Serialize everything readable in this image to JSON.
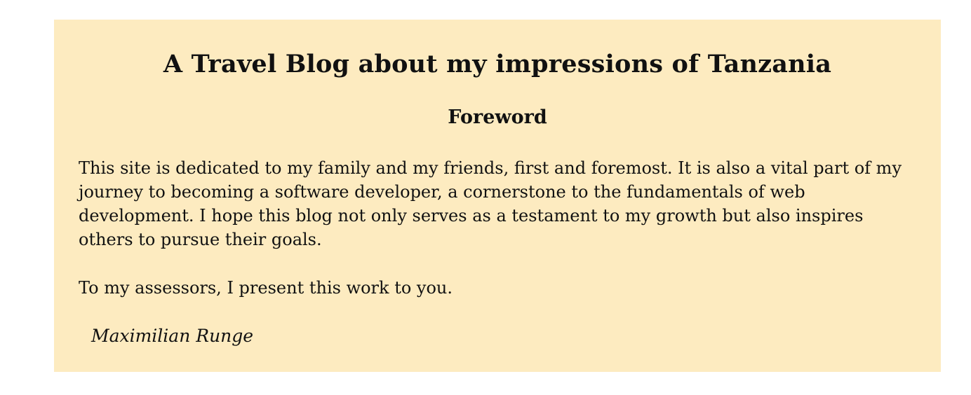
{
  "header": {
    "title": "A Travel Blog about my impressions of Tanzania"
  },
  "foreword": {
    "heading": "Foreword",
    "paragraphs": [
      "This site is dedicated to my family and my friends, first and foremost. It is also a vital part of my journey to becoming a software developer, a cornerstone to the fundamentals of web development. I hope this blog not only serves as a testament to my growth but also inspires others to pursue their goals.",
      "To my assessors, I present this work to you."
    ],
    "signature": "Maximilian Runge"
  },
  "colors": {
    "panel_background": "#fdebc0",
    "page_background": "#ffffff",
    "text": "#111111"
  }
}
